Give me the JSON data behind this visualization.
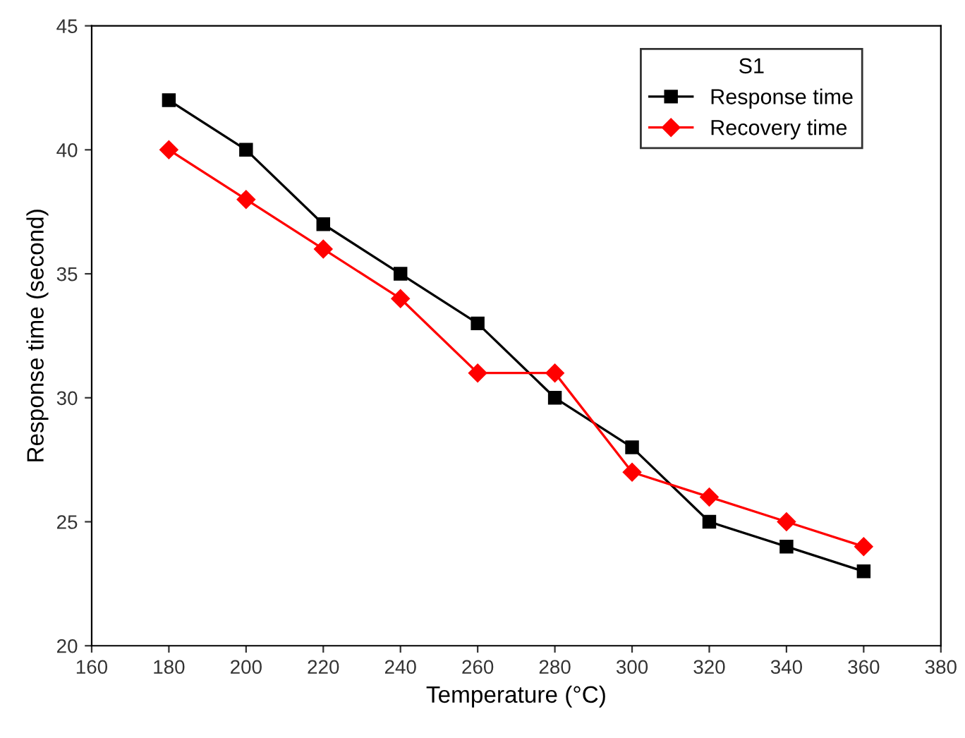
{
  "chart_data": {
    "type": "line",
    "xlabel": "Temperature (°C)",
    "ylabel": "Response time (second)",
    "legend_title": "S1",
    "x": [
      180,
      200,
      220,
      240,
      260,
      280,
      300,
      320,
      340,
      360
    ],
    "series": [
      {
        "name": "Response time",
        "color": "#000000",
        "marker": "square",
        "values": [
          42,
          40,
          37,
          35,
          33,
          30,
          28,
          25,
          24,
          23
        ]
      },
      {
        "name": "Recovery time",
        "color": "#ff0000",
        "marker": "diamond",
        "values": [
          40,
          38,
          36,
          34,
          31,
          31,
          27,
          26,
          25,
          24
        ]
      }
    ],
    "xlim": [
      160,
      380
    ],
    "xticks": [
      160,
      180,
      200,
      220,
      240,
      260,
      280,
      300,
      320,
      340,
      360,
      380
    ],
    "ylim": [
      20,
      45
    ],
    "yticks": [
      20,
      25,
      30,
      35,
      40,
      45
    ],
    "grid": false,
    "legend": "top right",
    "line_style": "solid"
  }
}
